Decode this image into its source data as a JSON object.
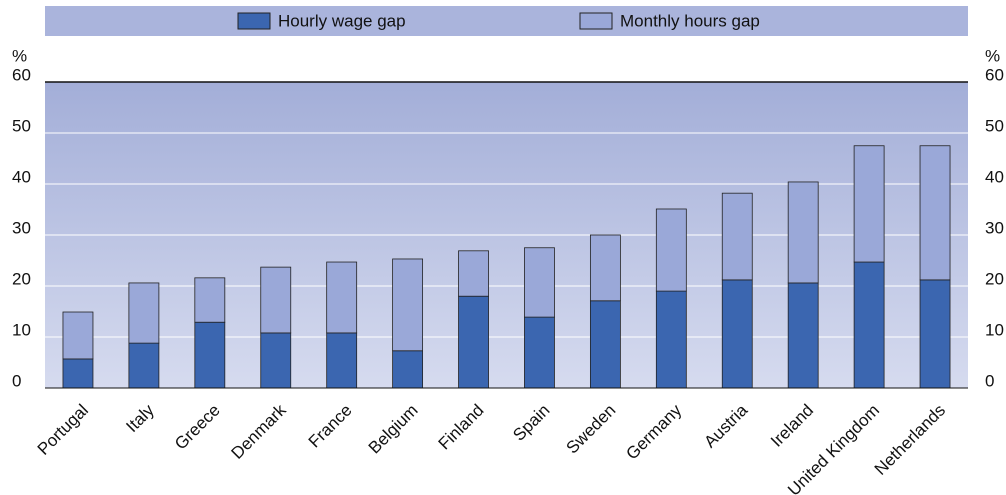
{
  "chart_data": {
    "type": "bar",
    "stacked": true,
    "y_label": "%",
    "categories": [
      "Portugal",
      "Italy",
      "Greece",
      "Denmark",
      "France",
      "Belgium",
      "Finland",
      "Spain",
      "Sweden",
      "Germany",
      "Austria",
      "Ireland",
      "United Kingdom",
      "Netherlands"
    ],
    "series": [
      {
        "name": "Hourly wage gap",
        "color": "#3b66b0",
        "values": [
          5.7,
          8.8,
          12.9,
          10.8,
          10.8,
          7.3,
          18.0,
          13.9,
          17.1,
          19.0,
          21.2,
          20.6,
          24.7,
          21.2
        ]
      },
      {
        "name": "Monthly hours gap",
        "color": "#9aa8d8",
        "values": [
          9.2,
          11.8,
          8.7,
          12.9,
          13.9,
          18.0,
          8.9,
          13.6,
          12.9,
          16.1,
          17.0,
          19.8,
          22.8,
          26.3
        ]
      }
    ],
    "ylim": [
      0,
      60
    ],
    "yticks": [
      0,
      10,
      20,
      30,
      40,
      50,
      60
    ],
    "grid": true
  }
}
